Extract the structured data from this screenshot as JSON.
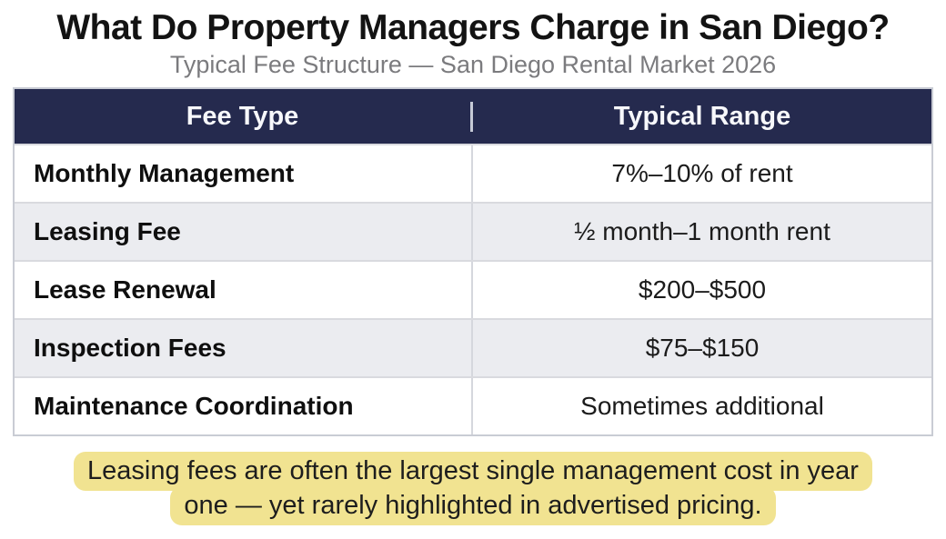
{
  "header": {
    "title": "What Do Property Managers Charge in San Diego?",
    "subtitle": "Typical Fee Structure — San Diego Rental Market 2026"
  },
  "table": {
    "col1_header": "Fee Type",
    "col2_header": "Typical Range",
    "rows": [
      {
        "fee": "Monthly Management",
        "range": "7%–10% of rent"
      },
      {
        "fee": "Leasing Fee",
        "range": "½ month–1 month rent"
      },
      {
        "fee": "Lease Renewal",
        "range": "$200–$500"
      },
      {
        "fee": "Inspection Fees",
        "range": "$75–$150"
      },
      {
        "fee": "Maintenance Coordination",
        "range": "Sometimes additional"
      }
    ]
  },
  "callout": {
    "line1": "Leasing fees are often the largest single management cost in year",
    "line2": "one — yet rarely highlighted in advertised pricing."
  },
  "colors": {
    "header_bg": "#252a4e",
    "header_text": "#f7f8fb",
    "row_alt_bg": "#ebecf0",
    "row_bg": "#ffffff",
    "highlight_bg": "#f1e391",
    "subtitle_text": "#7b7b7e",
    "body_text": "#161616"
  },
  "chart_data": {
    "type": "table",
    "title": "What Do Property Managers Charge in San Diego?",
    "subtitle": "Typical Fee Structure — San Diego Rental Market 2026",
    "columns": [
      "Fee Type",
      "Typical Range"
    ],
    "rows": [
      [
        "Monthly Management",
        "7%–10% of rent"
      ],
      [
        "Leasing Fee",
        "½ month–1 month rent"
      ],
      [
        "Lease Renewal",
        "$200–$500"
      ],
      [
        "Inspection Fees",
        "$75–$150"
      ],
      [
        "Maintenance Coordination",
        "Sometimes additional"
      ]
    ],
    "note": "Leasing fees are often the largest single management cost in year one — yet rarely highlighted in advertised pricing.",
    "layout_hints": {
      "header_style": "dark navy bar, white bold centered text",
      "zebra_striping": true,
      "note_style": "yellow highlighter rounded background, two centered lines"
    }
  }
}
